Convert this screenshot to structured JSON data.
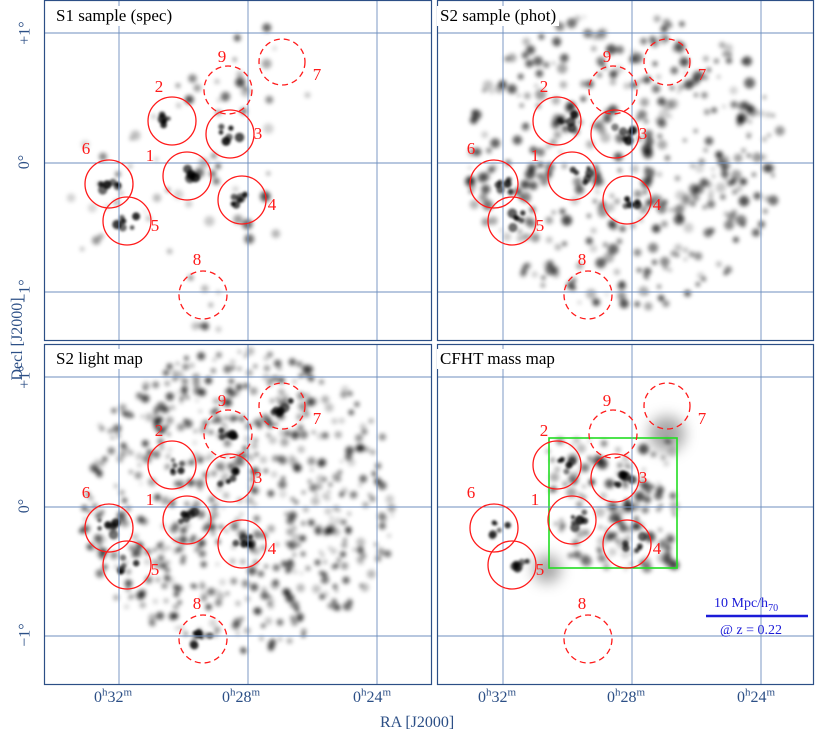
{
  "panels": {
    "s1": {
      "title": "S1 sample (spec)"
    },
    "s2": {
      "title": "S2 sample (phot)"
    },
    "light": {
      "title": "S2 light map"
    },
    "cfht": {
      "title": "CFHT mass map"
    }
  },
  "axes": {
    "y_label": "Decl [J2000]",
    "x_label": "RA [J2000]",
    "y_ticks": [
      "+1°",
      "0°",
      "−1°"
    ],
    "x_ticks": [
      {
        "h": "0",
        "hs": "h",
        "m": "32",
        "ms": "m"
      },
      {
        "h": "0",
        "hs": "h",
        "m": "28",
        "ms": "m"
      },
      {
        "h": "0",
        "hs": "h",
        "m": "24",
        "ms": "m"
      }
    ]
  },
  "clusters": [
    {
      "id": "1",
      "style": "solid"
    },
    {
      "id": "2",
      "style": "solid"
    },
    {
      "id": "3",
      "style": "solid"
    },
    {
      "id": "4",
      "style": "solid"
    },
    {
      "id": "5",
      "style": "solid"
    },
    {
      "id": "6",
      "style": "solid"
    },
    {
      "id": "7",
      "style": "dashed"
    },
    {
      "id": "8",
      "style": "dashed"
    },
    {
      "id": "9",
      "style": "dashed"
    }
  ],
  "scale_bar": {
    "line1": "10 Mpc/h",
    "line1_sub": "70",
    "line2": "@ z = 0.22"
  },
  "colors": {
    "frame": "#2c4f86",
    "grid": "#6f8fbf",
    "circle": "#ff1a1a",
    "box": "#22dd22",
    "scale": "#1b1bd8"
  }
}
